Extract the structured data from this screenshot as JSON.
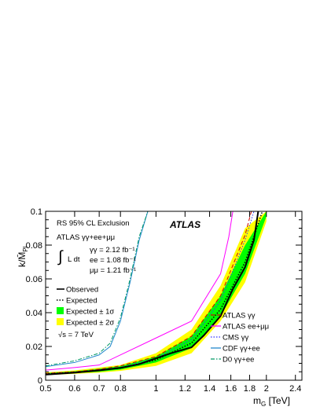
{
  "chart_data": {
    "type": "line",
    "annotations": {
      "exclusion": "RS 95% CL Exclusion",
      "dataset_title": "ATLAS γγ+ee+μμ",
      "integral_symbol": "∫",
      "lumi_prefix": "L dt",
      "lumi_lines": [
        "γγ = 2.12 fb⁻¹",
        "ee = 1.08 fb⁻¹",
        "μμ = 1.21 fb⁻¹"
      ],
      "energy": "√s = 7 TeV",
      "experiment": "ATLAS"
    },
    "xlabel": "m_G [TeV]",
    "ylabel": "k/M̄_Pl",
    "xscale": "log",
    "xlim": [
      0.5,
      2.5
    ],
    "ylim": [
      0,
      0.1
    ],
    "xticks": [
      {
        "value": 0.5,
        "label": "0.5"
      },
      {
        "value": 0.6,
        "label": "0.6"
      },
      {
        "value": 0.7,
        "label": "0.7"
      },
      {
        "value": 0.8,
        "label": "0.8"
      },
      {
        "value": 1.0,
        "label": "1"
      },
      {
        "value": 1.2,
        "label": "1.2"
      },
      {
        "value": 1.4,
        "label": "1.4"
      },
      {
        "value": 1.6,
        "label": "1.6"
      },
      {
        "value": 1.8,
        "label": "1.8"
      },
      {
        "value": 2.0,
        "label": "2"
      },
      {
        "value": 2.4,
        "label": "2.4"
      }
    ],
    "yticks": [
      {
        "value": 0,
        "label": "0"
      },
      {
        "value": 0.02,
        "label": "0.02"
      },
      {
        "value": 0.04,
        "label": "0.04"
      },
      {
        "value": 0.06,
        "label": "0.06"
      },
      {
        "value": 0.08,
        "label": "0.08"
      },
      {
        "value": 0.1,
        "label": "0.1"
      }
    ],
    "grid": false,
    "bands": [
      {
        "name": "Expected ± 2σ",
        "color": "#ffff00",
        "x": [
          0.5,
          0.6,
          0.7,
          0.8,
          1.0,
          1.25,
          1.5,
          1.75,
          2.0
        ],
        "lower": [
          0.003,
          0.0038,
          0.0045,
          0.0055,
          0.0085,
          0.016,
          0.035,
          0.058,
          0.094
        ],
        "upper": [
          0.0046,
          0.0058,
          0.0075,
          0.009,
          0.016,
          0.03,
          0.056,
          0.09,
          0.1
        ]
      },
      {
        "name": "Expected ± 1σ",
        "color": "#00ff00",
        "x": [
          0.5,
          0.6,
          0.7,
          0.8,
          1.0,
          1.25,
          1.5,
          1.75,
          2.0
        ],
        "lower": [
          0.0033,
          0.0042,
          0.005,
          0.0063,
          0.0105,
          0.019,
          0.038,
          0.063,
          0.097
        ],
        "upper": [
          0.0042,
          0.0053,
          0.0068,
          0.0083,
          0.014,
          0.026,
          0.05,
          0.08,
          0.1
        ]
      }
    ],
    "series": [
      {
        "name": "Observed",
        "color": "#000000",
        "style": "solid",
        "width": 2,
        "x": [
          0.5,
          0.6,
          0.7,
          0.8,
          0.9,
          1.0,
          1.1,
          1.25,
          1.35,
          1.5,
          1.62,
          1.75,
          1.85,
          1.9
        ],
        "y": [
          0.0033,
          0.0045,
          0.0058,
          0.0073,
          0.0095,
          0.013,
          0.016,
          0.0195,
          0.0265,
          0.038,
          0.054,
          0.067,
          0.083,
          0.1
        ]
      },
      {
        "name": "Expected",
        "color": "#000000",
        "style": "dotted",
        "width": 1.5,
        "x": [
          0.5,
          0.6,
          0.7,
          0.8,
          1.0,
          1.25,
          1.5,
          1.75,
          1.85,
          1.95
        ],
        "y": [
          0.0038,
          0.0047,
          0.006,
          0.0072,
          0.012,
          0.022,
          0.042,
          0.07,
          0.085,
          0.1
        ]
      },
      {
        "name": "ATLAS γγ",
        "color": "#cc0000",
        "style": "dashed",
        "width": 1,
        "x": [
          0.5,
          0.6,
          0.7,
          0.8,
          1.0,
          1.25,
          1.5,
          1.75,
          1.82
        ],
        "y": [
          0.004,
          0.005,
          0.0065,
          0.0085,
          0.014,
          0.026,
          0.05,
          0.086,
          0.1
        ]
      },
      {
        "name": "ATLAS ee+μμ",
        "color": "#ff00ff",
        "style": "solid",
        "width": 1,
        "x": [
          0.5,
          0.6,
          0.7,
          1.0,
          1.25,
          1.5,
          1.58,
          1.62
        ],
        "y": [
          0.006,
          0.0075,
          0.009,
          0.025,
          0.035,
          0.063,
          0.085,
          0.1
        ]
      },
      {
        "name": "CMS γγ",
        "color": "#3333ff",
        "style": "dotted",
        "width": 1,
        "x": [
          0.5,
          0.6,
          0.7,
          0.8,
          1.0,
          1.25,
          1.5,
          1.75,
          1.85
        ],
        "y": [
          0.0035,
          0.0045,
          0.006,
          0.0075,
          0.013,
          0.024,
          0.047,
          0.083,
          0.1
        ]
      },
      {
        "name": "CDF γγ+ee",
        "color": "#2288cc",
        "style": "solid",
        "width": 1,
        "x": [
          0.5,
          0.6,
          0.7,
          0.75,
          0.8,
          0.85,
          0.9,
          0.95
        ],
        "y": [
          0.008,
          0.0105,
          0.015,
          0.02,
          0.035,
          0.058,
          0.083,
          0.1
        ]
      },
      {
        "name": "D0 γγ+ee",
        "color": "#009966",
        "style": "dashdot",
        "width": 1,
        "x": [
          0.5,
          0.6,
          0.7,
          0.75,
          0.8,
          0.85,
          0.9,
          0.95
        ],
        "y": [
          0.0085,
          0.0115,
          0.016,
          0.022,
          0.037,
          0.06,
          0.085,
          0.1
        ]
      }
    ],
    "legend_left": [
      {
        "label": "Observed",
        "kind": "line",
        "color": "#000000",
        "style": "solid"
      },
      {
        "label": "Expected",
        "kind": "line",
        "color": "#000000",
        "style": "dotted"
      },
      {
        "label": "Expected ± 1σ",
        "kind": "box",
        "color": "#00ff00"
      },
      {
        "label": "Expected ± 2σ",
        "kind": "box",
        "color": "#ffff00"
      }
    ],
    "legend_right": [
      {
        "label": "ATLAS γγ",
        "color": "#cc0000",
        "style": "dashed"
      },
      {
        "label": "ATLAS ee+μμ",
        "color": "#ff00ff",
        "style": "solid"
      },
      {
        "label": "CMS γγ",
        "color": "#3333ff",
        "style": "dotted"
      },
      {
        "label": "CDF γγ+ee",
        "color": "#2288cc",
        "style": "solid"
      },
      {
        "label": "D0 γγ+ee",
        "color": "#009966",
        "style": "dashdot"
      }
    ]
  }
}
